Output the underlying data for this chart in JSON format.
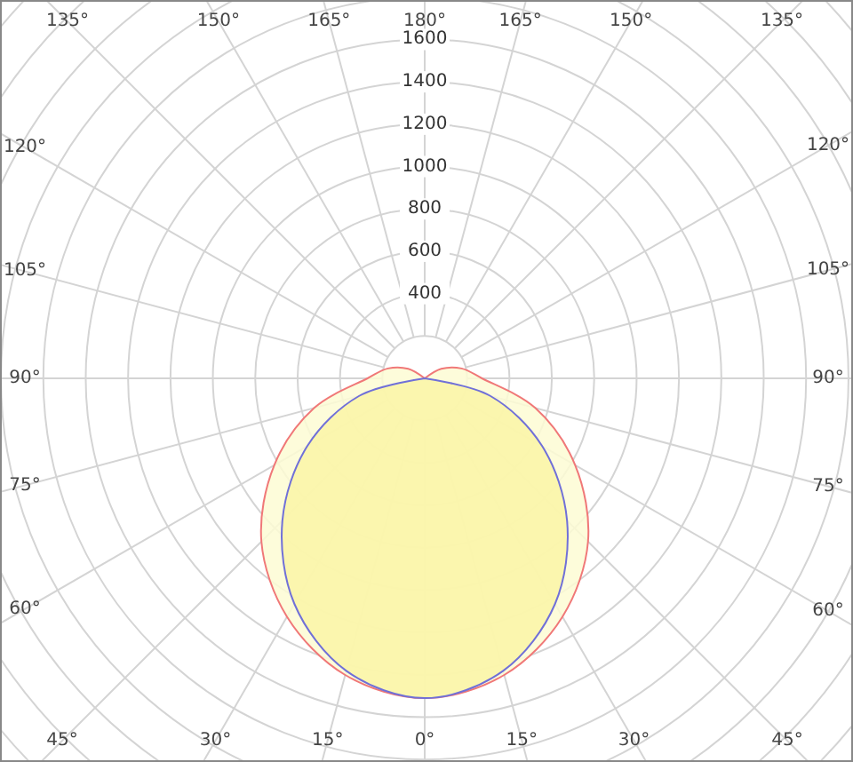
{
  "chart_data": {
    "type": "radar",
    "categories": [
      "180°",
      "165°",
      "150°",
      "135°",
      "120°",
      "105°",
      "90°",
      "75°",
      "60°",
      "45°",
      "30°",
      "15°",
      "0°",
      "15°",
      "30°",
      "45°",
      "60°",
      "75°",
      "90°",
      "105°",
      "120°",
      "135°",
      "150°",
      "165°"
    ],
    "series": [
      {
        "color": "#f07878",
        "values": [
          0,
          0,
          0,
          0,
          90,
          180,
          270,
          540,
          820,
          1090,
          1300,
          1450,
          1510,
          1450,
          1300,
          1090,
          820,
          540,
          270,
          180,
          90,
          0,
          0,
          0
        ]
      },
      {
        "color": "#7070d8",
        "values": [
          0,
          0,
          0,
          0,
          0,
          0,
          0,
          320,
          640,
          950,
          1230,
          1430,
          1510,
          1430,
          1230,
          950,
          640,
          320,
          0,
          0,
          0,
          0,
          0,
          0
        ]
      }
    ],
    "ylim": [
      0,
      2600
    ],
    "yticks": [
      400,
      600,
      800,
      1000,
      1200,
      1400,
      1600
    ],
    "grid": true
  }
}
